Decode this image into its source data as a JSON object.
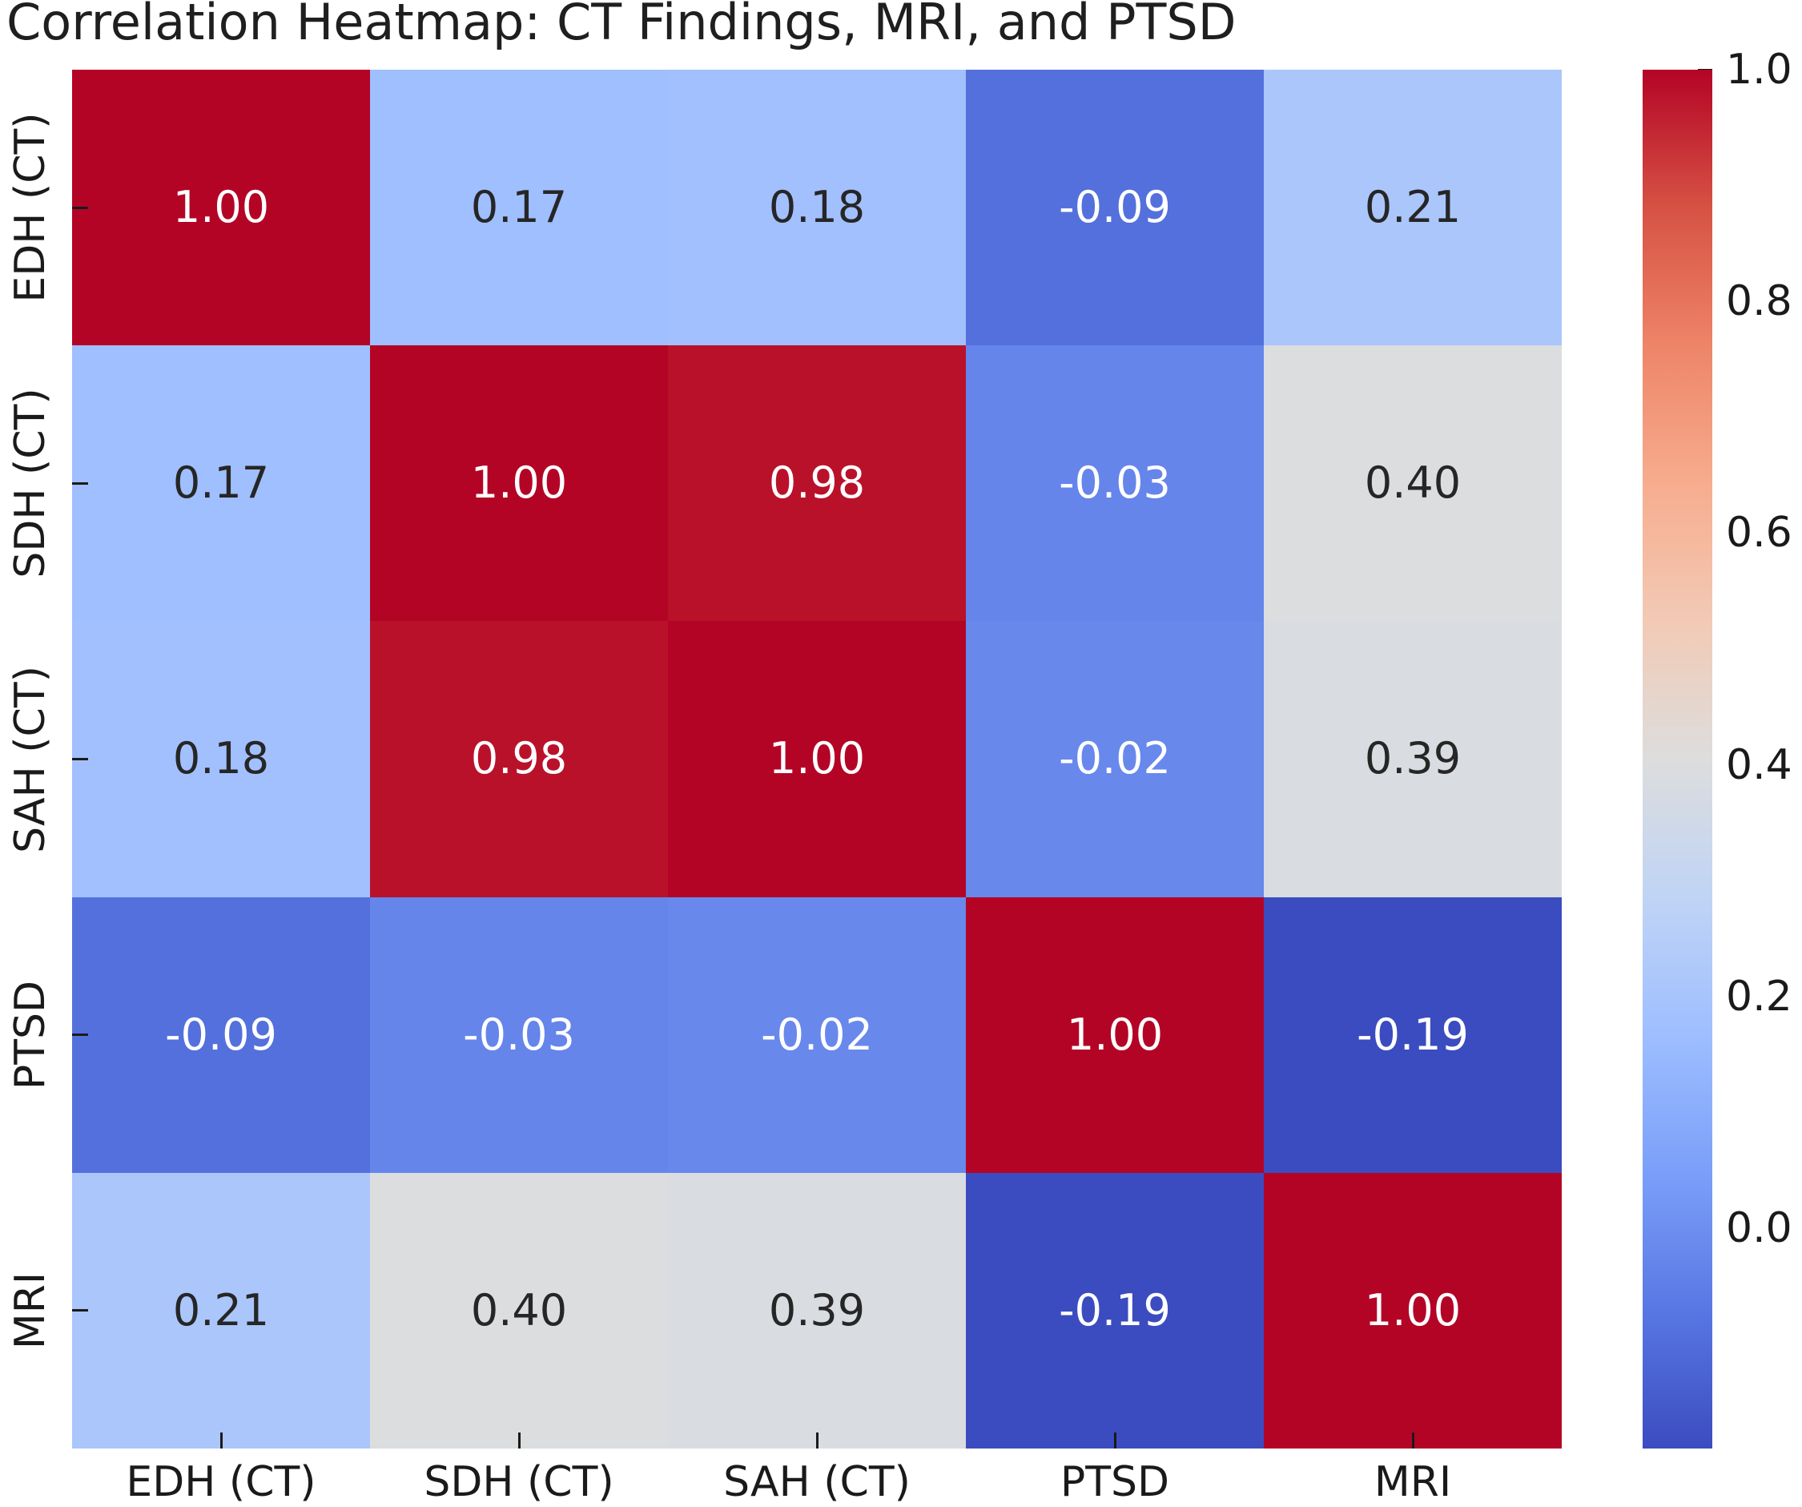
{
  "title": "Correlation Heatmap: CT Findings, MRI, and PTSD",
  "chart_data": {
    "type": "heatmap",
    "title": "Correlation Heatmap: CT Findings, MRI, and PTSD",
    "categories": [
      "EDH (CT)",
      "SDH (CT)",
      "SAH (CT)",
      "PTSD",
      "MRI"
    ],
    "row_labels": [
      "EDH (CT)",
      "SDH (CT)",
      "SAH (CT)",
      "PTSD",
      "MRI"
    ],
    "col_labels": [
      "EDH (CT)",
      "SDH (CT)",
      "SAH (CT)",
      "PTSD",
      "MRI"
    ],
    "matrix": [
      [
        1.0,
        0.17,
        0.18,
        -0.09,
        0.21
      ],
      [
        0.17,
        1.0,
        0.98,
        -0.03,
        0.4
      ],
      [
        0.18,
        0.98,
        1.0,
        -0.02,
        0.39
      ],
      [
        -0.09,
        -0.03,
        -0.02,
        1.0,
        -0.19
      ],
      [
        0.21,
        0.4,
        0.39,
        -0.19,
        1.0
      ]
    ],
    "cell_labels": [
      [
        "1.00",
        "0.17",
        "0.18",
        "-0.09",
        "0.21"
      ],
      [
        "0.17",
        "1.00",
        "0.98",
        "-0.03",
        "0.40"
      ],
      [
        "0.18",
        "0.98",
        "1.00",
        "-0.02",
        "0.39"
      ],
      [
        "-0.09",
        "-0.03",
        "-0.02",
        "1.00",
        "-0.19"
      ],
      [
        "0.21",
        "0.40",
        "0.39",
        "-0.19",
        "1.00"
      ]
    ],
    "colorbar": {
      "tick_labels": [
        "1.0",
        "0.8",
        "0.6",
        "0.4",
        "0.2",
        "0.0"
      ],
      "tick_values": [
        1.0,
        0.8,
        0.6,
        0.4,
        0.2,
        0.0
      ],
      "vmin": -0.19,
      "vmax": 1.0,
      "position": "right"
    },
    "colormap": {
      "name": "coolwarm",
      "stops": [
        "#3b4cc0",
        "#5977e3",
        "#7b9ff9",
        "#9ebeff",
        "#c0d4f5",
        "#dddddd",
        "#f2cab5",
        "#f7ac8e",
        "#ee8468",
        "#d65244",
        "#b40426"
      ]
    },
    "annotation_text_colors": {
      "on_light": "#262626",
      "on_dark": "#ffffff"
    },
    "grid_on": false,
    "legend_position": "none"
  }
}
